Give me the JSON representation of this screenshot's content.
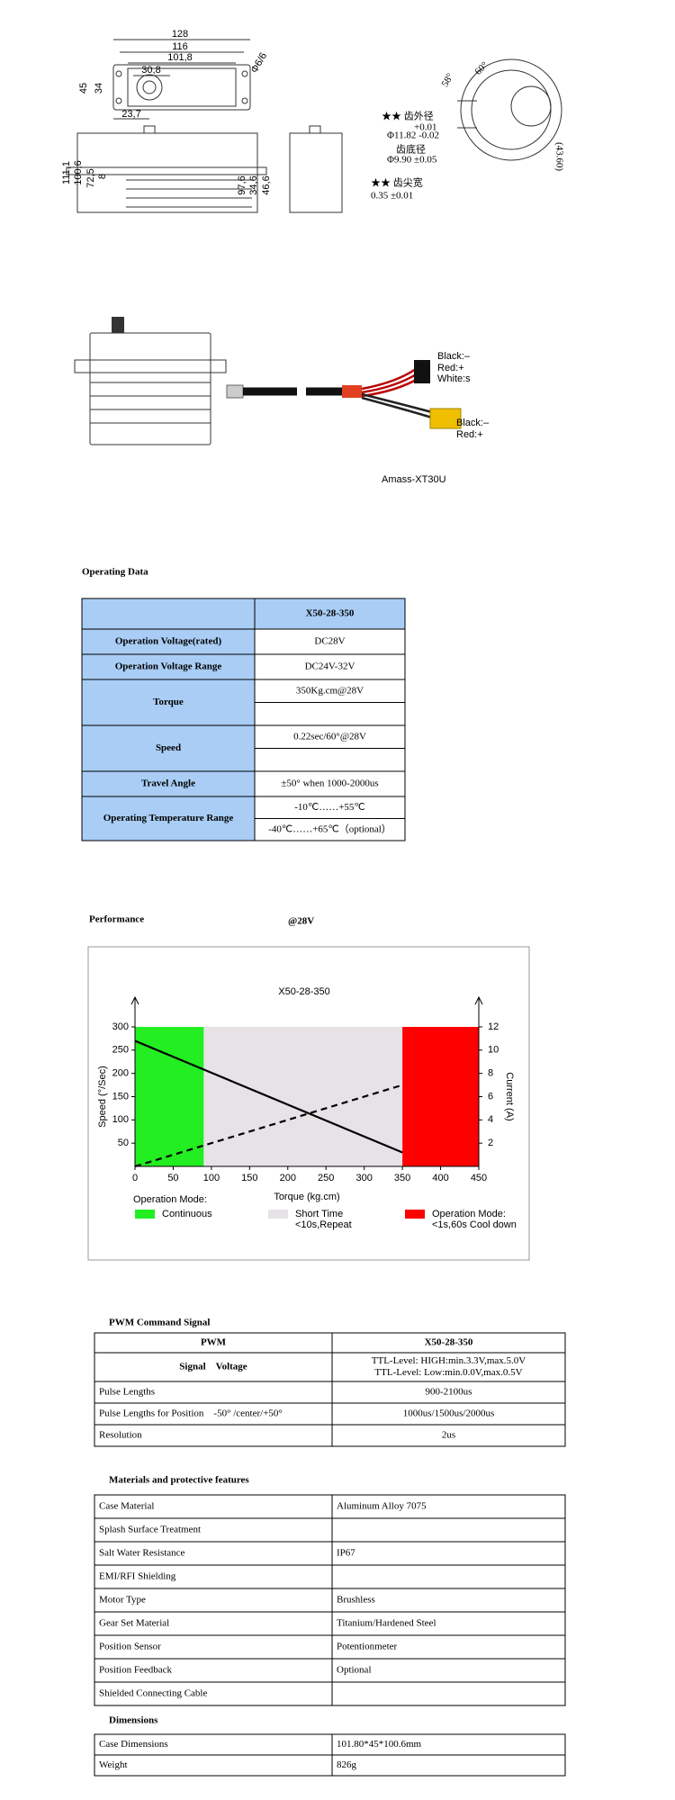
{
  "drawing": {
    "front_dims": [
      "128",
      "116",
      "101,8",
      "30,8",
      "Φ6/6",
      "45",
      "34",
      "23,7"
    ],
    "side_dims": [
      "111,1",
      "100,6",
      "72,5",
      "8",
      "97,6",
      "34,6",
      "46,6"
    ],
    "gear_labels": [
      "★★ 齿外径",
      "+0.01",
      "Φ11.82 -0.02",
      "齿底径",
      "Φ9.90 ±0.05",
      "★★ 齿尖宽",
      "0.35 ±0.01",
      "58°",
      "60°",
      "(43.60)"
    ],
    "wire_labels": [
      "Black:–",
      "Red:+",
      "White:s",
      "Black:–",
      "Red:+",
      "Amass-XT30U"
    ]
  },
  "operating_data": {
    "title": "Operating Data",
    "header": "X50-28-350",
    "rows": [
      {
        "label": "Operation Voltage(rated)",
        "values": [
          "DC28V"
        ]
      },
      {
        "label": "Operation Voltage Range",
        "values": [
          "DC24V-32V"
        ]
      },
      {
        "label": "Torque",
        "values": [
          "350Kg.cm@28V"
        ]
      },
      {
        "label": "Speed",
        "values": [
          "0.22sec/60°@28V"
        ]
      },
      {
        "label": "Travel Angle",
        "values": [
          "±50° when 1000-2000us"
        ]
      },
      {
        "label": "Operating Temperature Range",
        "values": [
          "-10℃……+55℃",
          "-40℃……+65℃（optional）"
        ],
        "colors": [
          "#000000",
          "#d00000"
        ]
      }
    ]
  },
  "performance": {
    "title": "Performance",
    "condition": "@28V",
    "chart": {
      "type": "line",
      "title": "X50-28-350",
      "x_label": "Torque (kg.cm)",
      "y_label": "Speed (°/Sec)",
      "y2_label": "Current (A)",
      "xlim": [
        0,
        450
      ],
      "xticks": [
        0,
        50,
        100,
        150,
        200,
        250,
        300,
        350,
        400,
        450
      ],
      "ylim": [
        0,
        300
      ],
      "yticks": [
        50,
        100,
        150,
        200,
        250,
        300
      ],
      "y2lim": [
        0,
        12
      ],
      "y2ticks": [
        2,
        4,
        6,
        8,
        10,
        12
      ],
      "series": [
        {
          "x": [
            0,
            350
          ],
          "values": [
            270,
            30
          ],
          "color": "#000000"
        },
        {
          "x": [
            0,
            350
          ],
          "values": [
            0,
            7
          ],
          "color": "#000000",
          "axis": "y2",
          "dashed": true
        }
      ],
      "legend_title": "Operation Mode:",
      "zones": [
        {
          "from": 0,
          "to": 90,
          "color": "#22ee22",
          "label": "Continuous"
        },
        {
          "from": 90,
          "to": 350,
          "color": "#e6e2e6",
          "label": "Short Time",
          "note": "<10s,Repeat"
        },
        {
          "from": 350,
          "to": 450,
          "color": "#ff0000",
          "label": "Operation Mode:",
          "note": "<1s,60s Cool down"
        }
      ]
    }
  },
  "pwm": {
    "title": "PWM Command Signal",
    "header": [
      "PWM",
      "X50-28-350"
    ],
    "rows": [
      {
        "label": "Signal　Voltage",
        "lines": [
          "TTL-Level: HIGH:min.3.3V,max.5.0V",
          "TTL-Level: Low:min.0.0V,max.0.5V"
        ]
      },
      {
        "label": "Pulse Lengths",
        "lines": [
          "900-2100us"
        ]
      },
      {
        "label": "Pulse Lengths for Position　-50° /center/+50°",
        "lines": [
          "1000us/1500us/2000us"
        ]
      },
      {
        "label": "Resolution",
        "lines": [
          "2us"
        ]
      }
    ]
  },
  "materials": {
    "title": "Materials and protective features",
    "rows": [
      {
        "label": "Case Material",
        "value": "Aluminum Alloy 7075"
      },
      {
        "label": "Splash Surface Treatment"
      },
      {
        "label": "Salt Water Resistance",
        "value": "IP67"
      },
      {
        "label": "EMI/RFI Shielding"
      },
      {
        "label": "Motor Type",
        "value": "Brushless"
      },
      {
        "label": "Gear Set Material",
        "value": "Titanium/Hardened Steel"
      },
      {
        "label": "Position Sensor",
        "value": "Potentionmeter"
      },
      {
        "label": "Position Feedback",
        "value": "Optional"
      },
      {
        "label": "Shielded Connecting Cable"
      }
    ]
  },
  "dimensions": {
    "title": "Dimensions",
    "rows": [
      {
        "label": "Case Dimensions",
        "value": "101.80*45*100.6mm"
      },
      {
        "label": "Weight",
        "value": "826g"
      }
    ]
  }
}
